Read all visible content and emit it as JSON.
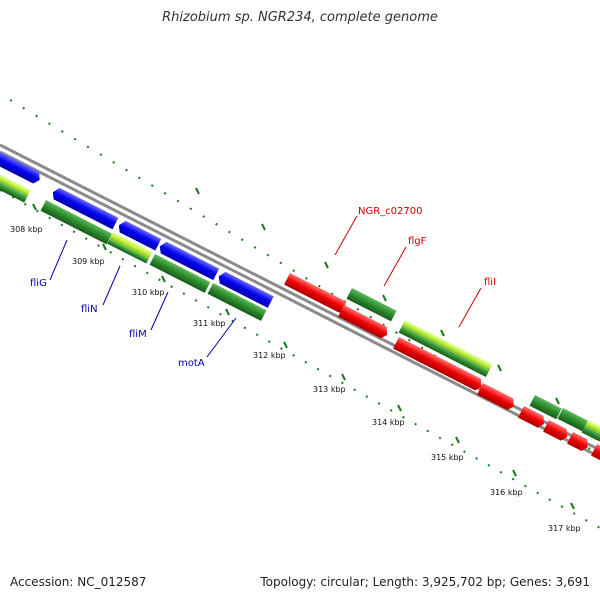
{
  "title": "Rhizobium sp. NGR234, complete genome",
  "footer": {
    "accession": "Accession: NC_012587",
    "summary": "Topology: circular; Length: 3,925,702 bp; Genes: 3,691"
  },
  "ticks": [
    {
      "label": "308 kbp",
      "kbp": 308
    },
    {
      "label": "309 kbp",
      "kbp": 309
    },
    {
      "label": "310 kbp",
      "kbp": 310
    },
    {
      "label": "311 kbp",
      "kbp": 311
    },
    {
      "label": "312 kbp",
      "kbp": 312
    },
    {
      "label": "313 kbp",
      "kbp": 313
    },
    {
      "label": "314 kbp",
      "kbp": 314
    },
    {
      "label": "315 kbp",
      "kbp": 315
    },
    {
      "label": "316 kbp",
      "kbp": 316
    },
    {
      "label": "317 kbp",
      "kbp": 317
    }
  ],
  "gene_labels": [
    {
      "name": "fliG",
      "color": "#0000aa"
    },
    {
      "name": "fliN",
      "color": "#0000aa"
    },
    {
      "name": "fliM",
      "color": "#0000aa"
    },
    {
      "name": "motA",
      "color": "#0000aa"
    },
    {
      "name": "NGR_c02700",
      "color": "#cc0000"
    },
    {
      "name": "flgF",
      "color": "#cc0000"
    },
    {
      "name": "fliI",
      "color": "#cc0000"
    }
  ],
  "colors": {
    "backbone": "#8a8a8a",
    "blue_gene": "#0000ee",
    "red_gene": "#ee0000",
    "green_gene": "#2a8a2a",
    "lime_gene": "#b8f03a",
    "tick_dots": "#1a7a1a"
  }
}
